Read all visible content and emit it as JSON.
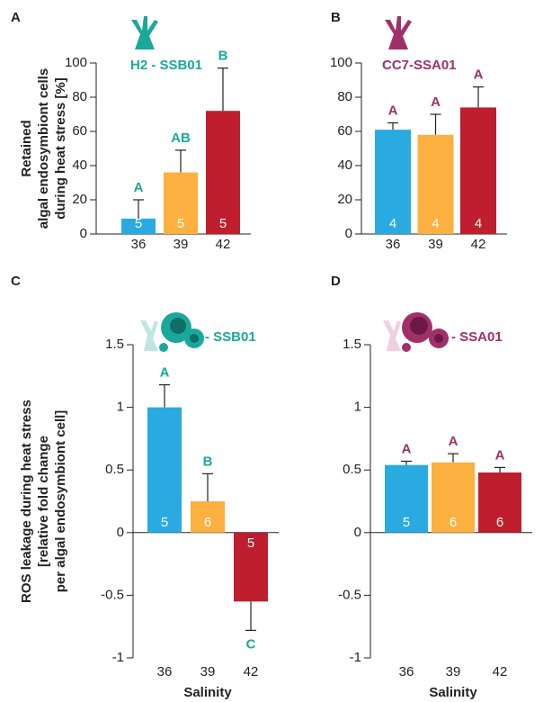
{
  "chart_data": [
    {
      "type": "bar",
      "panel": "A",
      "annotation": "H2 - SSB01",
      "accent": "#1aa89a",
      "ylabel": [
        "Retained",
        "algal endosymbiont cells",
        "during heat stress [%]"
      ],
      "categories": [
        "36",
        "39",
        "42"
      ],
      "values": [
        9,
        36,
        72
      ],
      "errors": [
        11,
        13,
        25
      ],
      "letters": [
        "A",
        "AB",
        "B"
      ],
      "n": [
        5,
        5,
        5
      ],
      "colors": [
        "#29abe2",
        "#fbb040",
        "#be1e2d"
      ],
      "ylim": [
        0,
        100
      ],
      "yticks": [
        0,
        20,
        40,
        60,
        80,
        100
      ]
    },
    {
      "type": "bar",
      "panel": "B",
      "annotation": "CC7-SSA01",
      "accent": "#a0306a",
      "categories": [
        "36",
        "39",
        "42"
      ],
      "values": [
        61,
        58,
        74
      ],
      "errors": [
        4,
        12,
        12
      ],
      "letters": [
        "A",
        "A",
        "A"
      ],
      "n": [
        4,
        4,
        4
      ],
      "colors": [
        "#29abe2",
        "#fbb040",
        "#be1e2d"
      ],
      "ylim": [
        0,
        100
      ],
      "yticks": [
        0,
        20,
        40,
        60,
        80,
        100
      ]
    },
    {
      "type": "bar",
      "panel": "C",
      "annotation": "- SSB01",
      "accent": "#1aa89a",
      "ylabel": [
        "ROS leakage during heat stress",
        "[relative fold change",
        "per algal endosymbiont cell]"
      ],
      "xlabel": "Salinity",
      "categories": [
        "36",
        "39",
        "42"
      ],
      "values": [
        1,
        0.25,
        -0.55
      ],
      "errors": [
        0.18,
        0.22,
        0.23
      ],
      "letters": [
        "A",
        "B",
        "C"
      ],
      "n": [
        5,
        6,
        5
      ],
      "colors": [
        "#29abe2",
        "#fbb040",
        "#be1e2d"
      ],
      "ylim": [
        -1,
        1.5
      ],
      "yticks": [
        -1,
        -0.5,
        0,
        0.5,
        1,
        1.5
      ]
    },
    {
      "type": "bar",
      "panel": "D",
      "annotation": "- SSA01",
      "accent": "#a0306a",
      "xlabel": "Salinity",
      "categories": [
        "36",
        "39",
        "42"
      ],
      "values": [
        0.54,
        0.56,
        0.48
      ],
      "errors": [
        0.03,
        0.07,
        0.04
      ],
      "letters": [
        "A",
        "A",
        "A"
      ],
      "n": [
        5,
        6,
        6
      ],
      "colors": [
        "#29abe2",
        "#fbb040",
        "#be1e2d"
      ],
      "ylim": [
        -1,
        1.5
      ],
      "yticks": [
        -1,
        -0.5,
        0,
        0.5,
        1,
        1.5
      ]
    }
  ]
}
